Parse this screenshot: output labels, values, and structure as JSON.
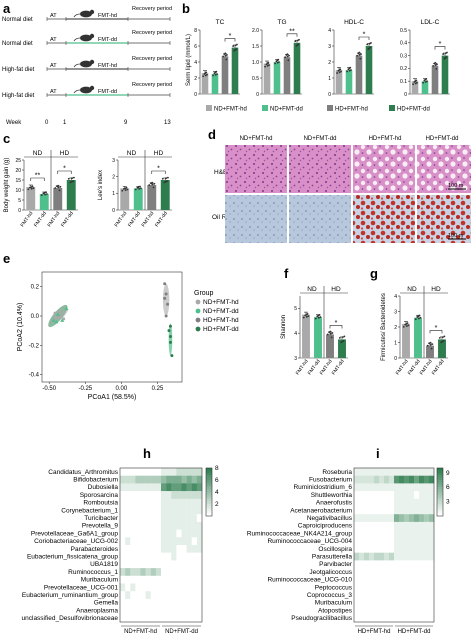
{
  "colors": {
    "nd_hd": "#a9a9a9",
    "nd_dd": "#4fbf8c",
    "hd_hd": "#7f7f7f",
    "hd_dd": "#2e7d4f",
    "heat_low": "#ffffff",
    "heat_high": "#2e7d4f",
    "he_stain": "#d98fc7",
    "oil_red": "#c0322a",
    "oil_blue": "#b7c7dc"
  },
  "icons": [
    "mouse-icon"
  ],
  "panel_a": {
    "letter": "a",
    "rows": [
      {
        "diet": "Normal diet",
        "start": "AT",
        "fmt": "FMT-hd",
        "end": "Recovery period"
      },
      {
        "diet": "Normal diet",
        "start": "AT",
        "fmt": "FMT-dd",
        "end": "Recovery period"
      },
      {
        "diet": "High-fat diet",
        "start": "AT",
        "fmt": "FMT-hd",
        "end": "Recovery period"
      },
      {
        "diet": "High-fat diet",
        "start": "AT",
        "fmt": "FMT-dd",
        "end": "Recovery period"
      }
    ],
    "week_label": "Week",
    "weeks": [
      "0",
      "1",
      "9",
      "13"
    ]
  },
  "panel_b": {
    "letter": "b",
    "ylabel": "Serm lipid (mmol/L)",
    "legend": [
      "ND+FMT-hd",
      "ND+FMT-dd",
      "HD+FMT-hd",
      "HD+FMT-dd"
    ]
  },
  "panel_c": {
    "letter": "c",
    "group_labels": [
      "ND",
      "HD"
    ],
    "xtick_labels": [
      "FMT-hd",
      "FMT-dd",
      "FMT-hd",
      "FMT-dd"
    ]
  },
  "panel_d": {
    "letter": "d",
    "columns": [
      "ND+FMT-hd",
      "ND+FMT-dd",
      "HD+FMT-hd",
      "HD+FMT-dd"
    ],
    "rows": [
      "H&E",
      "Oil Red O"
    ],
    "scale_bar": "100 m"
  },
  "panel_e": {
    "letter": "e",
    "legend_title": "Group",
    "legend": [
      "ND+FMT-hd",
      "ND+FMT-dd",
      "HD+FMT-hd",
      "HD+FMT-dd"
    ]
  },
  "panel_f": {
    "letter": "f",
    "group_labels": [
      "ND",
      "HD"
    ],
    "xtick_labels": [
      "FMT-hd",
      "FMT-dd",
      "FMT-hd",
      "FMT-dd"
    ]
  },
  "panel_g": {
    "letter": "g",
    "group_labels": [
      "ND",
      "HD"
    ],
    "xtick_labels": [
      "FMT-hd",
      "FMT-dd",
      "FMT-hd",
      "FMT-dd"
    ]
  },
  "panel_h": {
    "letter": "h",
    "genera": [
      "Candidatus_Arthromitus",
      "Bifidobacterium",
      "Dubosiella",
      "Sporosarcina",
      "Romboutsia",
      "Corynebacterium_1",
      "Turicibacter",
      "Prevotella_9",
      "Prevotellaceae_Ga6A1_group",
      "Coriobacteriaceae_UCG-002",
      "Parabacteroides",
      "Eubacterium_fissicatena_group",
      "UBA1819",
      "Ruminococcus_1",
      "Muribaculum",
      "Prevotellaceae_UCG-001",
      "Eubacterium_ruminantium_group",
      "Gemella",
      "Anaeroplasma",
      "unclassified_Desulfovibrionaceae"
    ],
    "groups": [
      "ND+FMT-hd",
      "ND+FMT-dd"
    ],
    "colorbar_ticks": [
      "8",
      "6",
      "4",
      "2"
    ]
  },
  "panel_i": {
    "letter": "i",
    "genera": [
      "Roseburia",
      "Fusobacterium",
      "Ruminiclostridium_6",
      "Shuttleworthia",
      "Anaerofustis",
      "Acetanaerobacterium",
      "Negativibacillus",
      "Caproiciproducens",
      "Ruminococcaceae_NK4A214_group",
      "Ruminococcaceae_UCG-004",
      "Oscillospira",
      "Parasutterella",
      "Parvibacter",
      "Jeotgalicoccus",
      "Ruminococcaceae_UCG-010",
      "Peptococcus",
      "Coprococcus_3",
      "Muribaculum",
      "Atopostipes",
      "Pseudogracilibacillus"
    ],
    "groups": [
      "HD+FMT-hd",
      "HD+FMT-dd"
    ],
    "colorbar_ticks": [
      "9",
      "6",
      "3"
    ]
  },
  "chart_data": [
    {
      "id": "b-TC",
      "type": "bar",
      "title": "TC",
      "categories": [
        "ND+FMT-hd",
        "ND+FMT-dd",
        "HD+FMT-hd",
        "HD+FMT-dd"
      ],
      "values": [
        2.6,
        2.5,
        4.7,
        5.8
      ],
      "ylim": [
        0,
        8
      ],
      "yticks": [
        "0",
        "2",
        "4",
        "6",
        "8"
      ],
      "significance": [
        {
          "pair": [
            2,
            3
          ],
          "label": "*"
        }
      ]
    },
    {
      "id": "b-TG",
      "type": "bar",
      "title": "TG",
      "categories": [
        "ND+FMT-hd",
        "ND+FMT-dd",
        "HD+FMT-hd",
        "HD+FMT-dd"
      ],
      "values": [
        0.95,
        1.0,
        1.15,
        1.6
      ],
      "ylim": [
        0,
        2.0
      ],
      "yticks": [
        "0",
        "0.5",
        "1.0",
        "1.5",
        "2.0"
      ],
      "significance": [
        {
          "pair": [
            2,
            3
          ],
          "label": "**"
        }
      ]
    },
    {
      "id": "b-HDL",
      "type": "bar",
      "title": "HDL-C",
      "categories": [
        "ND+FMT-hd",
        "ND+FMT-dd",
        "HD+FMT-hd",
        "HD+FMT-dd"
      ],
      "values": [
        1.5,
        1.5,
        2.4,
        3.0
      ],
      "ylim": [
        0,
        4
      ],
      "yticks": [
        "0",
        "1",
        "2",
        "3",
        "4"
      ],
      "significance": [
        {
          "pair": [
            2,
            3
          ],
          "label": "*"
        }
      ]
    },
    {
      "id": "b-LDL",
      "type": "bar",
      "title": "LDL-C",
      "categories": [
        "ND+FMT-hd",
        "ND+FMT-dd",
        "HD+FMT-hd",
        "HD+FMT-dd"
      ],
      "values": [
        0.1,
        0.1,
        0.22,
        0.3
      ],
      "ylim": [
        0,
        0.5
      ],
      "yticks": [
        "0",
        "0.1",
        "0.2",
        "0.3",
        "0.4",
        "0.5"
      ],
      "significance": [
        {
          "pair": [
            2,
            3
          ],
          "label": "*"
        }
      ]
    },
    {
      "id": "c-bw",
      "type": "bar",
      "ylabel": "Body weight gain (g)",
      "categories": [
        "ND+FMT-hd",
        "ND+FMT-dd",
        "HD+FMT-hd",
        "HD+FMT-dd"
      ],
      "values": [
        11.5,
        8.0,
        11.0,
        15.0
      ],
      "ylim": [
        0,
        25
      ],
      "yticks": [
        "0",
        "5",
        "10",
        "15",
        "20",
        "25"
      ],
      "significance": [
        {
          "pair": [
            0,
            1
          ],
          "label": "**"
        },
        {
          "pair": [
            2,
            3
          ],
          "label": "*"
        }
      ]
    },
    {
      "id": "c-lee",
      "type": "bar",
      "ylabel": "Lee's index",
      "categories": [
        "ND+FMT-hd",
        "ND+FMT-dd",
        "HD+FMT-hd",
        "HD+FMT-dd"
      ],
      "values": [
        1.3,
        1.3,
        1.5,
        1.8
      ],
      "ylim": [
        0,
        3
      ],
      "yticks": [
        "0",
        "1",
        "2",
        "3"
      ],
      "significance": [
        {
          "pair": [
            2,
            3
          ],
          "label": "*"
        }
      ]
    },
    {
      "id": "e-pcoa",
      "type": "scatter",
      "xlabel": "PCoA1 (58.5%)",
      "ylabel": "PCoA2 (10.4%)",
      "xlim": [
        -0.55,
        0.42
      ],
      "ylim": [
        -0.45,
        0.3
      ],
      "xticks": [
        "-0.50",
        "-0.25",
        "0.00",
        "0.25"
      ],
      "yticks": [
        "0.2",
        "0.0",
        "-0.2",
        "-0.4"
      ],
      "series": [
        {
          "name": "ND+FMT-hd",
          "points": [
            [
              -0.46,
              0.02
            ],
            [
              -0.44,
              -0.01
            ],
            [
              -0.42,
              0.0
            ],
            [
              -0.4,
              -0.02
            ],
            [
              -0.43,
              0.03
            ]
          ]
        },
        {
          "name": "ND+FMT-dd",
          "points": [
            [
              -0.47,
              -0.03
            ],
            [
              -0.45,
              -0.04
            ],
            [
              -0.38,
              0.05
            ],
            [
              -0.44,
              0.01
            ],
            [
              -0.41,
              -0.03
            ]
          ]
        },
        {
          "name": "HD+FMT-hd",
          "points": [
            [
              0.3,
              0.22
            ],
            [
              0.31,
              0.15
            ],
            [
              0.32,
              0.08
            ],
            [
              0.31,
              0.0
            ],
            [
              0.3,
              0.12
            ]
          ]
        },
        {
          "name": "HD+FMT-dd",
          "points": [
            [
              0.34,
              -0.07
            ],
            [
              0.34,
              -0.14
            ],
            [
              0.35,
              -0.27
            ],
            [
              0.33,
              -0.1
            ],
            [
              0.34,
              -0.18
            ]
          ]
        }
      ]
    },
    {
      "id": "f-shannon",
      "type": "bar",
      "ylabel": "Shannon",
      "categories": [
        "ND+FMT-hd",
        "ND+FMT-dd",
        "HD+FMT-hd",
        "HD+FMT-dd"
      ],
      "values": [
        4.75,
        4.65,
        3.95,
        3.75
      ],
      "ylim": [
        3,
        5.5
      ],
      "yticks": [
        "3",
        "4",
        "5"
      ],
      "significance": [
        {
          "pair": [
            2,
            3
          ],
          "label": "*"
        }
      ]
    },
    {
      "id": "g-fb",
      "type": "bar",
      "ylabel": "Firmicutes/ Bacteroidetes",
      "categories": [
        "ND+FMT-hd",
        "ND+FMT-dd",
        "HD+FMT-hd",
        "HD+FMT-dd"
      ],
      "values": [
        2.2,
        2.6,
        0.8,
        1.2
      ],
      "ylim": [
        0,
        4
      ],
      "yticks": [
        "0",
        "1",
        "2",
        "3",
        "4"
      ],
      "significance": [
        {
          "pair": [
            2,
            3
          ],
          "label": "*"
        }
      ]
    },
    {
      "id": "h-heat",
      "type": "heatmap",
      "rows": 20,
      "cols": 16,
      "vmin": 0,
      "vmax": 8,
      "values": [
        [
          0,
          0,
          0,
          0,
          0,
          0,
          0,
          0,
          1,
          1,
          1,
          2,
          2,
          2,
          2,
          2
        ],
        [
          2,
          2,
          2,
          3,
          3,
          3,
          3,
          3,
          4,
          5,
          5,
          5,
          4,
          5,
          4,
          5
        ],
        [
          1,
          1,
          1,
          1,
          1,
          1,
          1,
          1,
          6,
          7,
          6,
          6,
          7,
          6,
          7,
          6
        ],
        [
          0,
          0,
          0,
          0,
          0,
          0,
          0,
          0,
          1,
          1,
          2,
          2,
          2,
          2,
          2,
          2
        ],
        [
          0,
          0,
          0,
          0,
          0,
          0,
          0,
          0,
          1,
          1,
          1,
          1,
          1,
          1,
          1,
          1
        ],
        [
          0,
          0,
          0,
          0,
          0,
          0,
          0,
          0,
          1,
          1,
          1,
          1,
          1,
          1,
          1,
          1
        ],
        [
          0,
          0,
          0,
          0,
          0,
          0,
          0,
          0,
          1,
          1,
          1,
          1,
          1,
          1,
          1,
          0
        ],
        [
          0,
          0,
          0,
          0,
          0,
          0,
          0,
          0,
          1,
          1,
          1,
          1,
          1,
          1,
          1,
          1
        ],
        [
          0,
          0,
          0,
          0,
          0,
          0,
          0,
          0,
          1,
          1,
          1,
          0,
          1,
          1,
          1,
          1
        ],
        [
          0,
          1,
          0,
          0,
          0,
          0,
          0,
          0,
          1,
          1,
          1,
          1,
          1,
          1,
          0,
          1
        ],
        [
          0,
          0,
          0,
          0,
          0,
          0,
          0,
          0,
          1,
          1,
          1,
          0,
          0,
          1,
          1,
          1
        ],
        [
          0,
          0,
          0,
          0,
          0,
          0,
          0,
          0,
          0,
          0,
          1,
          0,
          0,
          0,
          0,
          0
        ],
        [
          0,
          0,
          0,
          0,
          0,
          0,
          0,
          0,
          0,
          0,
          0,
          0,
          0,
          0,
          0,
          0
        ],
        [
          2,
          3,
          2,
          2,
          3,
          2,
          3,
          2,
          0,
          0,
          0,
          0,
          0,
          0,
          0,
          0
        ],
        [
          0,
          0,
          0,
          0,
          0,
          0,
          0,
          0,
          0,
          0,
          0,
          0,
          0,
          0,
          0,
          0
        ],
        [
          1,
          0,
          1,
          0,
          0,
          0,
          0,
          0,
          0,
          0,
          0,
          0,
          0,
          0,
          0,
          0
        ],
        [
          0,
          1,
          0,
          0,
          0,
          1,
          0,
          0,
          0,
          0,
          0,
          0,
          0,
          0,
          0,
          0
        ],
        [
          0,
          0,
          0,
          0,
          0,
          0,
          0,
          0,
          0,
          0,
          0,
          0,
          0,
          0,
          0,
          0
        ],
        [
          0,
          0,
          0,
          0,
          0,
          0,
          0,
          0,
          0,
          0,
          0,
          0,
          0,
          0,
          0,
          0
        ],
        [
          0,
          0,
          0,
          0,
          0,
          0,
          0,
          0,
          0,
          0,
          0,
          0,
          0,
          0,
          0,
          0
        ]
      ]
    },
    {
      "id": "i-heat",
      "type": "heatmap",
      "rows": 20,
      "cols": 16,
      "vmin": 0,
      "vmax": 10,
      "values": [
        [
          1,
          1,
          1,
          1,
          1,
          1,
          1,
          1,
          1,
          1,
          1,
          1,
          1,
          1,
          1,
          1
        ],
        [
          2,
          2,
          2,
          2,
          3,
          2,
          3,
          2,
          8,
          9,
          8,
          9,
          7,
          9,
          8,
          9
        ],
        [
          1,
          1,
          1,
          1,
          1,
          1,
          1,
          1,
          1,
          1,
          1,
          1,
          1,
          1,
          1,
          1
        ],
        [
          0,
          0,
          0,
          0,
          0,
          0,
          0,
          0,
          1,
          1,
          1,
          1,
          0,
          1,
          1,
          1
        ],
        [
          0,
          0,
          0,
          0,
          0,
          0,
          0,
          0,
          1,
          1,
          1,
          1,
          1,
          1,
          1,
          1
        ],
        [
          0,
          0,
          0,
          0,
          0,
          0,
          0,
          0,
          1,
          1,
          1,
          1,
          1,
          1,
          1,
          1
        ],
        [
          1,
          1,
          1,
          1,
          1,
          1,
          1,
          1,
          6,
          5,
          4,
          5,
          6,
          5,
          4,
          5
        ],
        [
          0,
          0,
          0,
          0,
          0,
          0,
          0,
          0,
          1,
          1,
          1,
          1,
          1,
          1,
          1,
          1
        ],
        [
          0,
          0,
          0,
          0,
          0,
          0,
          0,
          0,
          1,
          1,
          1,
          1,
          1,
          1,
          1,
          1
        ],
        [
          0,
          0,
          0,
          0,
          0,
          0,
          0,
          0,
          1,
          1,
          1,
          1,
          1,
          1,
          1,
          1
        ],
        [
          0,
          0,
          0,
          0,
          0,
          0,
          0,
          0,
          1,
          1,
          1,
          1,
          1,
          1,
          1,
          1
        ],
        [
          3,
          2,
          3,
          2,
          3,
          3,
          2,
          3,
          1,
          1,
          1,
          1,
          1,
          1,
          1,
          1
        ],
        [
          0,
          0,
          0,
          0,
          0,
          0,
          0,
          0,
          0,
          0,
          0,
          0,
          0,
          0,
          0,
          0
        ],
        [
          0,
          0,
          0,
          0,
          0,
          0,
          0,
          0,
          0,
          0,
          0,
          0,
          0,
          0,
          0,
          0
        ],
        [
          0,
          0,
          0,
          0,
          0,
          0,
          0,
          0,
          0,
          0,
          0,
          0,
          0,
          0,
          0,
          0
        ],
        [
          0,
          0,
          0,
          0,
          0,
          0,
          0,
          0,
          0,
          0,
          0,
          0,
          0,
          0,
          0,
          0
        ],
        [
          0,
          0,
          0,
          0,
          0,
          0,
          0,
          0,
          0,
          0,
          0,
          0,
          0,
          0,
          0,
          0
        ],
        [
          0,
          0,
          0,
          0,
          0,
          0,
          0,
          0,
          0,
          0,
          0,
          0,
          0,
          0,
          0,
          0
        ],
        [
          0,
          0,
          0,
          0,
          0,
          0,
          0,
          0,
          0,
          0,
          0,
          0,
          0,
          0,
          0,
          0
        ],
        [
          0,
          0,
          0,
          0,
          0,
          0,
          0,
          0,
          0,
          0,
          0,
          0,
          0,
          0,
          0,
          0
        ]
      ]
    }
  ]
}
